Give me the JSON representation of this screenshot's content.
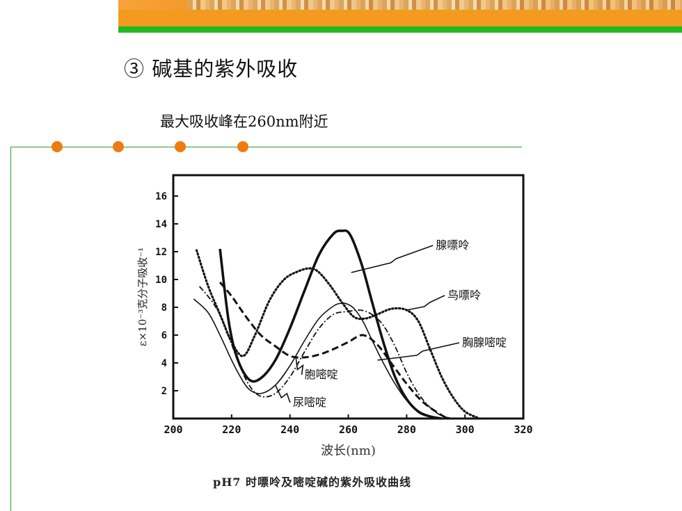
{
  "slide": {
    "heading": "③ 碱基的紫外吸收",
    "subheading": "最大吸收峰在260nm附近",
    "accent_orange": "#f07a12",
    "accent_green": "#22b822"
  },
  "chart_data": {
    "type": "line",
    "title": "pH7 时嘌呤及嘧啶碱的紫外吸收曲线",
    "xlabel": "波长(nm)",
    "ylabel": "ε×10⁻³克分子吸收⁻¹",
    "xlim": [
      200,
      320
    ],
    "ylim": [
      0,
      17.5
    ],
    "xticks": [
      200,
      220,
      240,
      260,
      280,
      300,
      320
    ],
    "xtick_labels": [
      "200",
      "220",
      "240",
      "260",
      "280",
      "300",
      "320"
    ],
    "yticks": [
      2,
      4,
      6,
      8,
      10,
      12,
      14,
      16
    ],
    "ytick_labels": [
      "2",
      "4",
      "6",
      "8",
      "10",
      "12",
      "14",
      "16"
    ],
    "grid": false,
    "series": [
      {
        "name": "腺嘌呤",
        "style": "solid-bold",
        "x": [
          216,
          219,
          222,
          226,
          230,
          235,
          240,
          245,
          250,
          255,
          258,
          260,
          262,
          265,
          268,
          272,
          276,
          280,
          284,
          288,
          292
        ],
        "y": [
          12.2,
          7,
          4.3,
          2.8,
          2.9,
          4.2,
          6.5,
          9.2,
          11.8,
          13.3,
          13.5,
          13.4,
          12.6,
          10.8,
          8.5,
          5.5,
          3.0,
          1.4,
          0.5,
          0.15,
          0
        ]
      },
      {
        "name": "鸟嘌呤",
        "style": "dotted",
        "x": [
          208,
          212,
          216,
          220,
          224,
          228,
          233,
          238,
          243,
          247,
          250,
          254,
          258,
          262,
          266,
          270,
          275,
          280,
          284,
          288,
          292,
          296,
          300,
          305
        ],
        "y": [
          12.1,
          9.5,
          7.5,
          5.5,
          4.5,
          6.0,
          8.5,
          10.0,
          10.6,
          10.8,
          10.5,
          9.5,
          8.3,
          7.3,
          7.2,
          7.5,
          7.9,
          7.8,
          7.0,
          5.0,
          3.0,
          1.5,
          0.5,
          0
        ]
      },
      {
        "name": "胸腺嘧啶",
        "style": "dash-dot",
        "x": [
          209,
          214,
          218,
          222,
          226,
          230,
          235,
          240,
          245,
          250,
          255,
          260,
          264,
          268,
          272,
          276,
          280,
          284,
          288,
          292,
          296
        ],
        "y": [
          9.5,
          8.2,
          6.5,
          4.2,
          2.4,
          1.6,
          1.8,
          3.0,
          4.8,
          6.5,
          7.5,
          7.7,
          7.8,
          7.5,
          6.7,
          5.2,
          3.3,
          1.8,
          0.8,
          0.2,
          0
        ]
      },
      {
        "name": "胞嘧啶",
        "style": "dashed",
        "x": [
          216,
          220,
          225,
          230,
          235,
          240,
          245,
          250,
          255,
          260,
          265,
          270,
          275,
          280,
          285,
          290,
          294
        ],
        "y": [
          9.8,
          8.8,
          7.3,
          6.0,
          5.2,
          4.5,
          4.4,
          4.6,
          5.0,
          5.5,
          6.0,
          5.3,
          3.9,
          2.5,
          1.3,
          0.5,
          0
        ]
      },
      {
        "name": "尿嘧啶",
        "style": "solid-thin",
        "x": [
          207,
          212,
          216,
          220,
          223,
          226,
          230,
          235,
          240,
          245,
          250,
          255,
          258,
          260,
          262,
          265,
          268,
          272,
          276,
          280,
          284,
          288,
          292
        ],
        "y": [
          8.6,
          7.6,
          6.0,
          4.2,
          3.0,
          2.1,
          1.8,
          2.4,
          3.8,
          5.6,
          7.2,
          8.1,
          8.3,
          8.2,
          7.9,
          7.0,
          5.7,
          4.0,
          2.5,
          1.3,
          0.5,
          0.1,
          0
        ]
      }
    ],
    "annotations": [
      {
        "text": "腺嘌呤",
        "target_series": "腺嘌呤",
        "target_x": 261,
        "target_y": 10.5,
        "label_x": 290,
        "label_y": 12.2
      },
      {
        "text": "鸟嘌呤",
        "target_series": "鸟嘌呤",
        "target_x": 280,
        "target_y": 7.8,
        "label_x": 294,
        "label_y": 8.6
      },
      {
        "text": "胸腺嘧啶",
        "target_series": "胸腺嘧啶",
        "target_x": 270,
        "target_y": 4.2,
        "label_x": 299,
        "label_y": 5.2
      },
      {
        "text": "胞嘧啶",
        "target_series": "胞嘧啶",
        "target_x": 242,
        "target_y": 4.45,
        "label_x": 245,
        "label_y": 2.9
      },
      {
        "text": "尿嘧啶",
        "target_series": "尿嘧啶",
        "target_x": 235,
        "target_y": 2.4,
        "label_x": 241,
        "label_y": 0.9
      }
    ]
  }
}
